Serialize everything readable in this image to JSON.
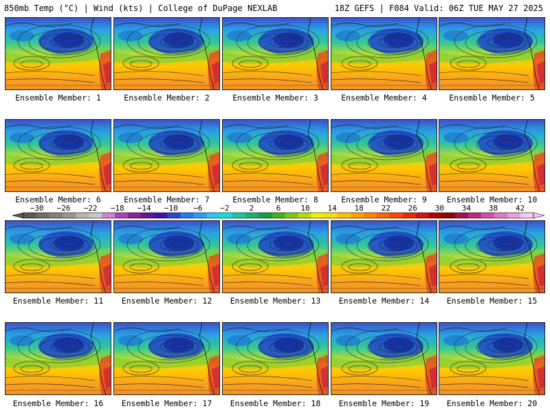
{
  "header": {
    "left_title": "850mb Temp (°C) | Wind (kts) | College of DuPage NEXLAB",
    "right_title": "18Z GEFS | F084 Valid: 06Z TUE MAY 27 2025"
  },
  "colorbar": {
    "tick_labels": [
      "−30",
      "−26",
      "−22",
      "−18",
      "−14",
      "−10",
      "−6",
      "−2",
      "2",
      "6",
      "10",
      "14",
      "18",
      "22",
      "26",
      "30",
      "34",
      "38",
      "42"
    ],
    "colors": [
      "#5a5a5a",
      "#6e6e6e",
      "#828282",
      "#969696",
      "#b4b4b4",
      "#c8c8c8",
      "#d280d2",
      "#b040c0",
      "#8c1ea0",
      "#6414a0",
      "#3c14b4",
      "#2846d2",
      "#2878ff",
      "#28a0ff",
      "#28c8f0",
      "#14dcdc",
      "#14c8a0",
      "#14b46e",
      "#14a03c",
      "#3cb41e",
      "#78c814",
      "#b4dc14",
      "#f0f000",
      "#ffdc00",
      "#ffbe00",
      "#ffa000",
      "#ff8200",
      "#ff6400",
      "#ff4600",
      "#f02800",
      "#d21414",
      "#b40000",
      "#960000",
      "#a0144b",
      "#be287d",
      "#d250aa",
      "#e178c8",
      "#eba0dc",
      "#f5c8ec"
    ]
  },
  "panels": [
    {
      "label": "Ensemble Member: 1"
    },
    {
      "label": "Ensemble Member: 2"
    },
    {
      "label": "Ensemble Member: 3"
    },
    {
      "label": "Ensemble Member: 4"
    },
    {
      "label": "Ensemble Member: 5"
    },
    {
      "label": "Ensemble Member: 6"
    },
    {
      "label": "Ensemble Member: 7"
    },
    {
      "label": "Ensemble Member: 8"
    },
    {
      "label": "Ensemble Member: 9"
    },
    {
      "label": "Ensemble Member: 10"
    },
    {
      "label": "Ensemble Member: 11"
    },
    {
      "label": "Ensemble Member: 12"
    },
    {
      "label": "Ensemble Member: 13"
    },
    {
      "label": "Ensemble Member: 14"
    },
    {
      "label": "Ensemble Member: 15"
    },
    {
      "label": "Ensemble Member: 16"
    },
    {
      "label": "Ensemble Member: 17"
    },
    {
      "label": "Ensemble Member: 18"
    },
    {
      "label": "Ensemble Member: 19"
    },
    {
      "label": "Ensemble Member: 20"
    }
  ]
}
